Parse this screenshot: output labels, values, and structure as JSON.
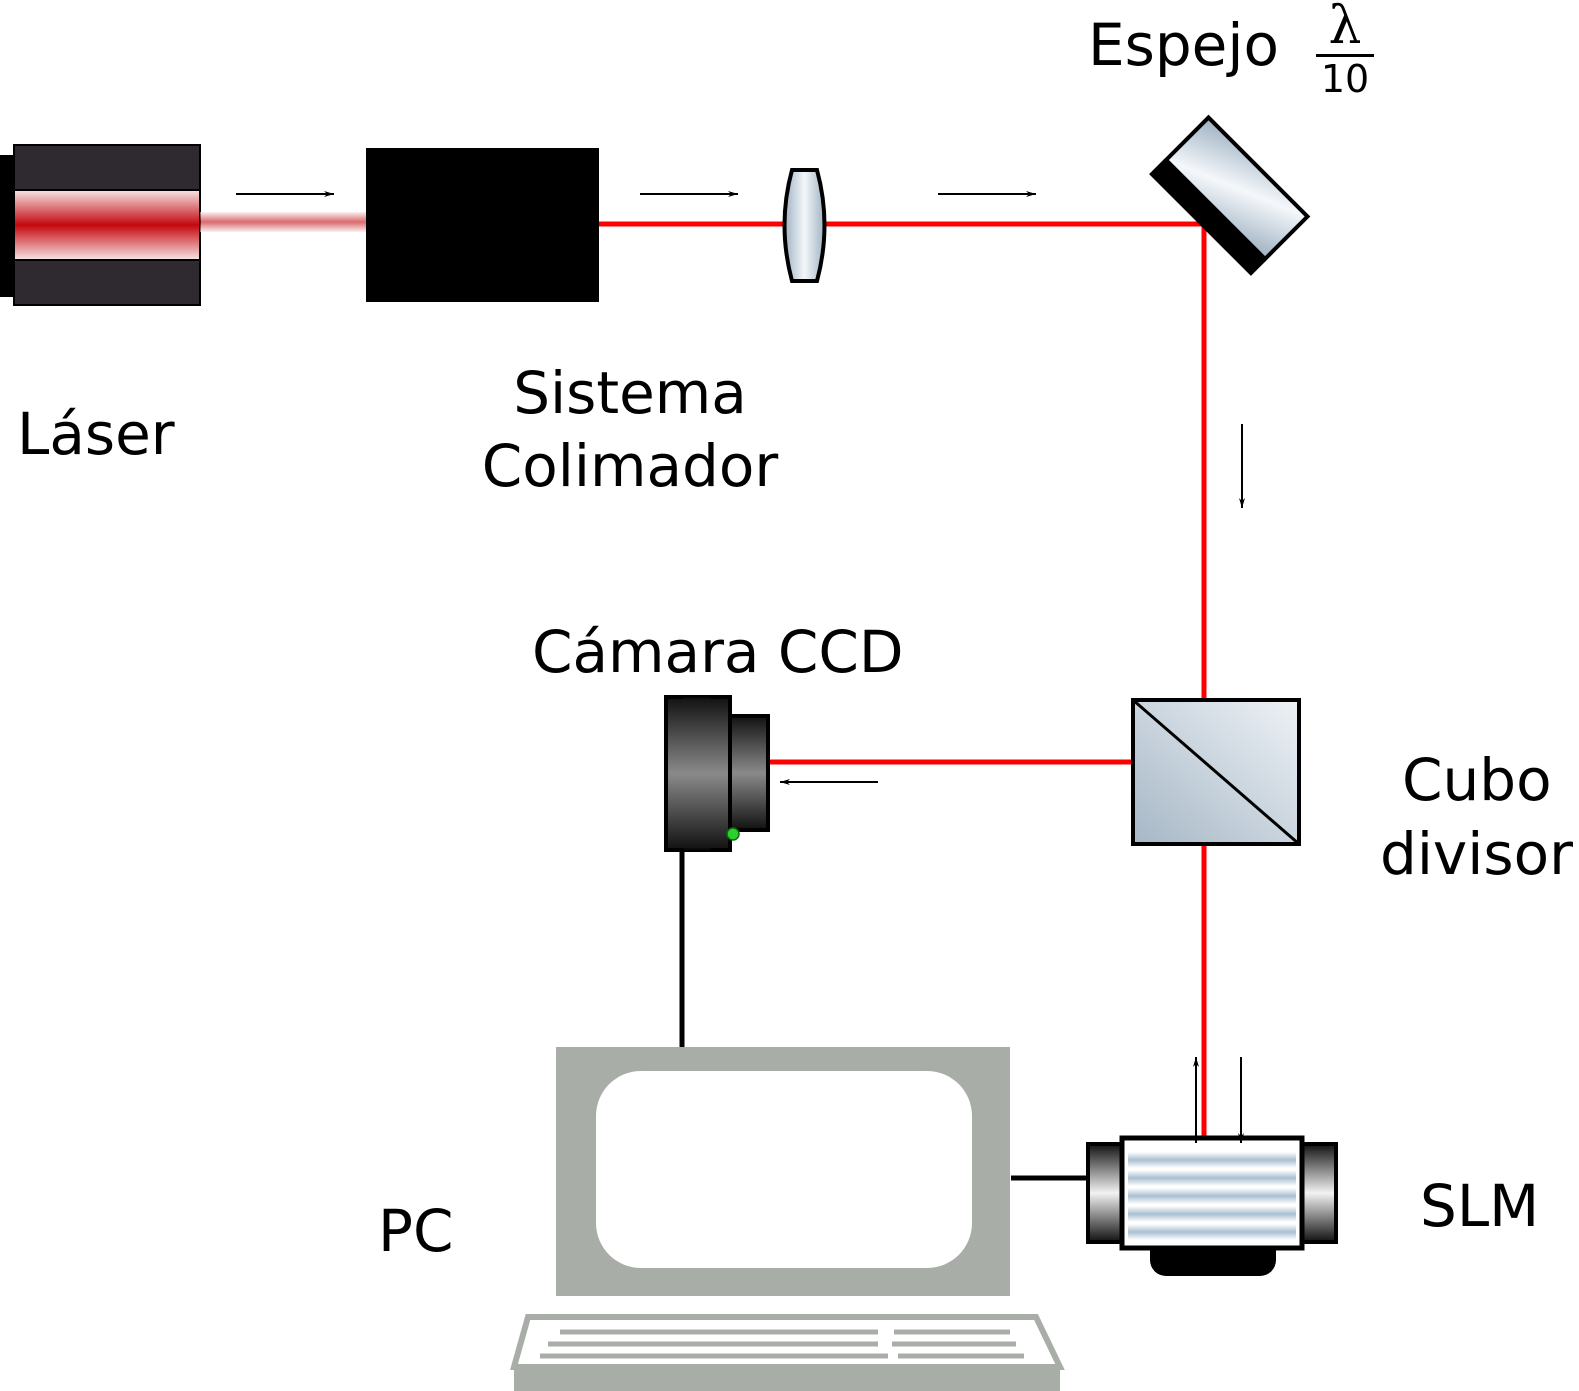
{
  "labels": {
    "laser": "Láser",
    "colimador_line1": "Sistema",
    "colimador_line2": "Colimador",
    "espejo": "Espejo",
    "espejo_fraction_numerator": "λ",
    "espejo_fraction_denominator": "10",
    "camara": "Cámara CCD",
    "cubo_line1": "Cubo",
    "cubo_line2": "divisor",
    "slm": "SLM",
    "pc": "PC"
  },
  "colors": {
    "beam": "#ff0000",
    "laser_body": "#2e2a30",
    "collimator": "#000000",
    "monitor": "#a9ada7",
    "optics_glass": "#b9c6d1"
  }
}
